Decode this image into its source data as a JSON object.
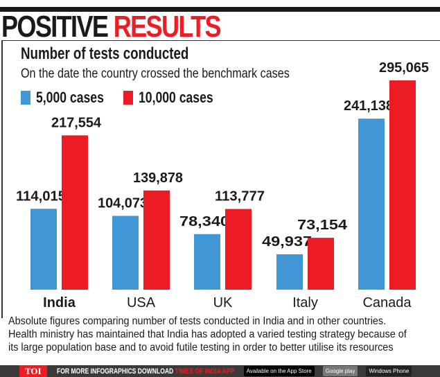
{
  "header": {
    "title_black": "POSITIVE",
    "title_red": "RESULTS"
  },
  "subtitle": "Number of tests conducted",
  "description": "On the date the country crossed the benchmark cases",
  "colors": {
    "blue": "#4196d6",
    "red": "#ed1c24",
    "dark": "#1a1a1a"
  },
  "chart_data": {
    "type": "bar",
    "title": "Number of tests conducted",
    "subtitle": "On the date the country crossed the benchmark cases",
    "categories": [
      "India",
      "USA",
      "UK",
      "Italy",
      "Canada"
    ],
    "series": [
      {
        "name": "5,000 cases",
        "color": "#4196d6",
        "values": [
          114015,
          104073,
          78340,
          49937,
          241138
        ],
        "labels": [
          "114,015",
          "104,073",
          "78,340",
          "49,937",
          "241,138"
        ]
      },
      {
        "name": "10,000 cases",
        "color": "#ed1c24",
        "values": [
          217554,
          139878,
          113777,
          73154,
          295065
        ],
        "labels": [
          "217,554",
          "139,878",
          "113,777",
          "73,154",
          "295,065"
        ]
      }
    ],
    "legend": "top-left",
    "grid": false,
    "ylim": [
      0,
      300000
    ]
  },
  "footnote": "Absolute figures comparing number of tests conducted in India and in other countries. Health ministry has maintained that India has adopted a varied testing strategy because of its large population base and to avoid futile testing in order to better utilise its resources",
  "bottom_bar": {
    "logo": "TOI",
    "promo": "FOR MORE  INFOGRAPHICS DOWNLOAD ",
    "promo_red": "TIMES OF INDIA  APP",
    "app_store": "Available on the App Store",
    "google_play": "Google play",
    "windows": "Windows Phone"
  }
}
